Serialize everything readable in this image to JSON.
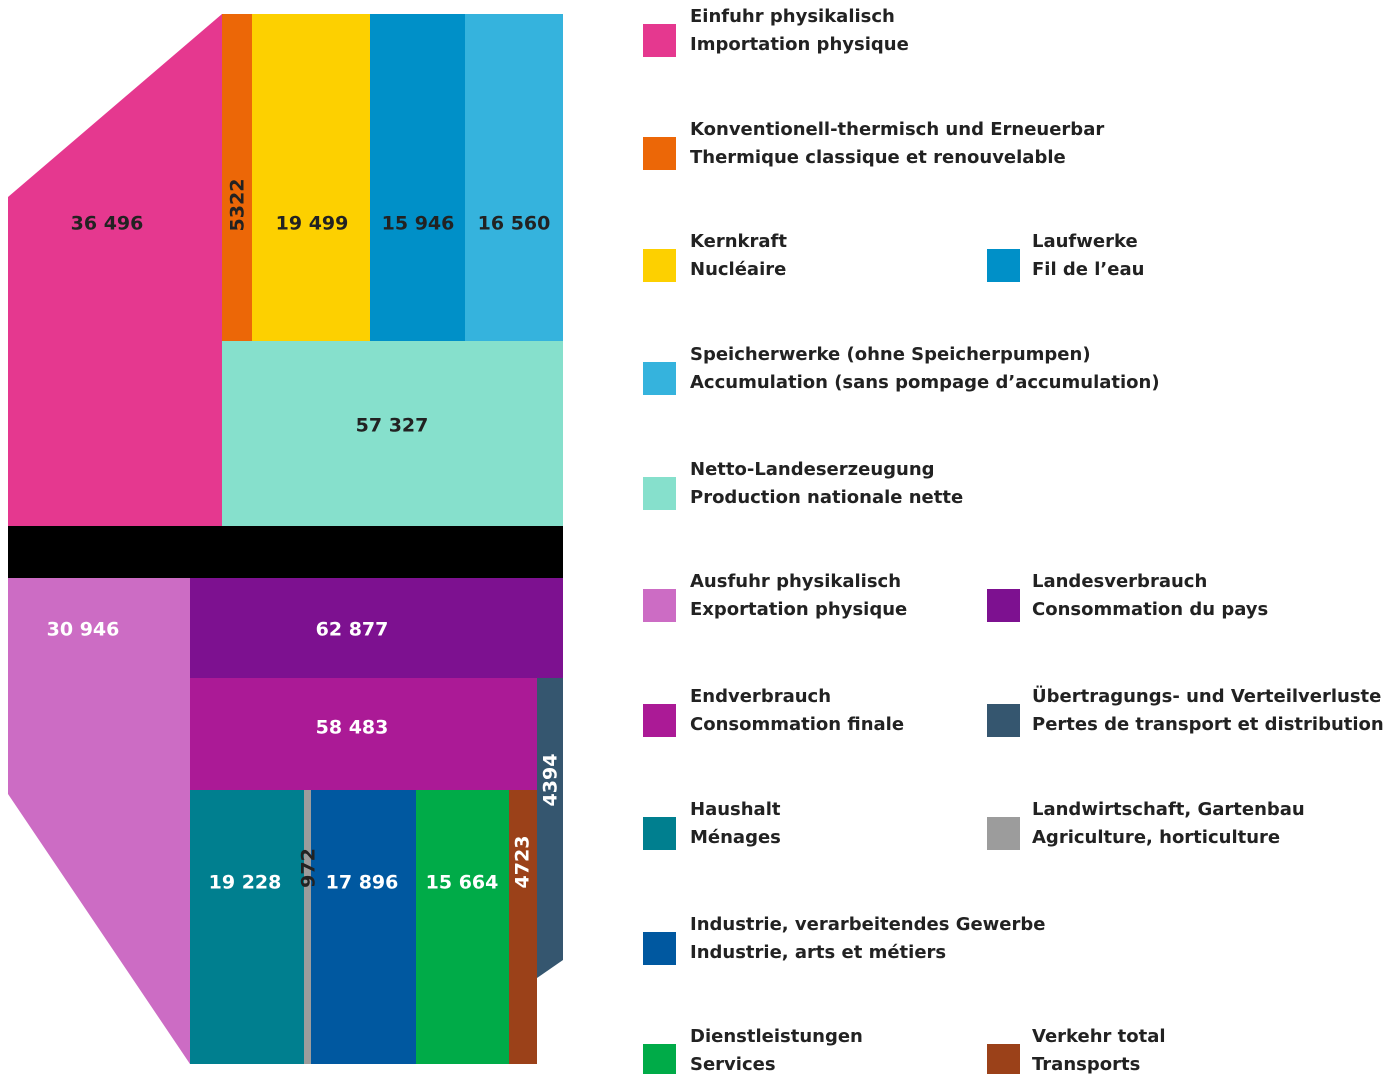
{
  "flows": [
    {
      "value": "36 496",
      "color": "#e5388f"
    },
    {
      "value": "5322",
      "color": "#ec6707"
    },
    {
      "value": "19 499",
      "color": "#fdd000"
    },
    {
      "value": "15 946",
      "color": "#0090c8"
    },
    {
      "value": "16 560",
      "color": "#35b3dd"
    },
    {
      "value": "57 327",
      "color": "#86e0cc"
    },
    {
      "value": "30 946",
      "color": "#cc6cc4"
    },
    {
      "value": "62 877",
      "color": "#7d1190"
    },
    {
      "value": "58 483",
      "color": "#ab1a96"
    },
    {
      "value": "4394",
      "color": "#35566f"
    },
    {
      "value": "19 228",
      "color": "#007f8f"
    },
    {
      "value": "972",
      "color": "#9c9c9c"
    },
    {
      "value": "17 896",
      "color": "#0058a0"
    },
    {
      "value": "15 664",
      "color": "#00ab48"
    },
    {
      "value": "4723",
      "color": "#9b4119"
    }
  ],
  "legend": [
    {
      "de": "Einfuhr physikalisch",
      "fr": "Importation physique"
    },
    {
      "de": "Konventionell-thermisch und Erneuerbar",
      "fr": "Thermique classique et renouvelable"
    },
    {
      "de": "Kernkraft",
      "fr": "Nucléaire"
    },
    {
      "de": "Laufwerke",
      "fr": "Fil de l’eau"
    },
    {
      "de": "Speicherwerke (ohne Speicherpumpen)",
      "fr": "Accumulation (sans pompage d’accumulation)"
    },
    {
      "de": "Netto-Landeserzeugung",
      "fr": "Production nationale nette"
    },
    {
      "de": "Ausfuhr physikalisch",
      "fr": "Exportation physique"
    },
    {
      "de": "Landesverbrauch",
      "fr": "Consommation du pays"
    },
    {
      "de": "Endverbrauch",
      "fr": "Consommation finale"
    },
    {
      "de": "Übertragungs- und Verteilverluste",
      "fr": "Pertes de transport et distribution"
    },
    {
      "de": "Haushalt",
      "fr": "Ménages"
    },
    {
      "de": "Landwirtschaft, Gartenbau",
      "fr": "Agriculture, horticulture"
    },
    {
      "de": "Industrie, verarbeitendes Gewerbe",
      "fr": "Industrie, arts et métiers"
    },
    {
      "de": "Dienstleistungen",
      "fr": "Services"
    },
    {
      "de": "Verkehr total",
      "fr": "Transports"
    }
  ]
}
